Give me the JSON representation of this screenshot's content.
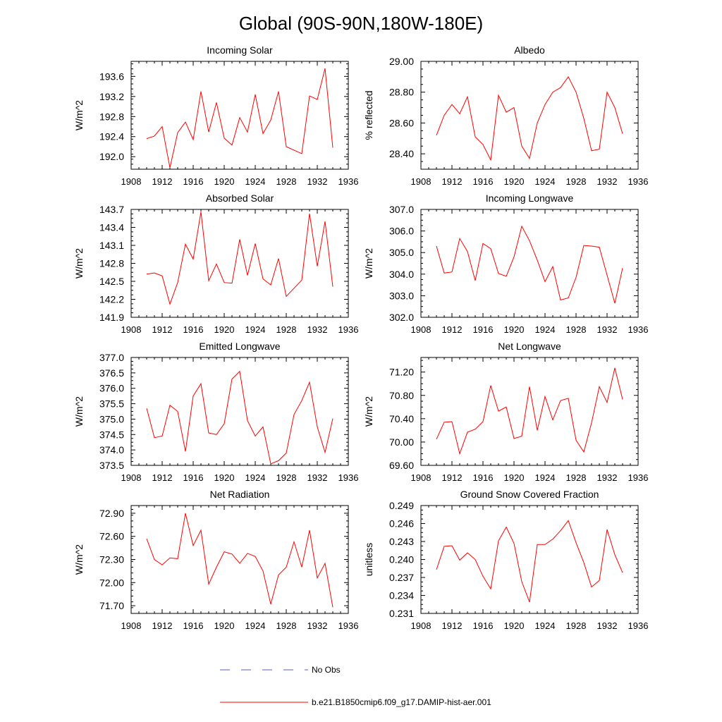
{
  "title": "Global (90S-90N,180W-180E)",
  "colors": {
    "model_line": "#ff0000",
    "obs_line": "#5a5ad6",
    "axis": "#000000"
  },
  "legend": {
    "obs_label": "No Obs",
    "model_label": "b.e21.B1850cmip6.f09_g17.DAMIP-hist-aer.001"
  },
  "chart_data": [
    {
      "type": "line",
      "title": "Incoming Solar",
      "xlabel": "",
      "ylabel": "W/m^2",
      "xlim": [
        1908,
        1936
      ],
      "ylim": [
        191.75,
        193.9
      ],
      "xticks": [
        1908,
        1912,
        1916,
        1920,
        1924,
        1928,
        1932,
        1936
      ],
      "yticks": [
        192.0,
        192.4,
        192.8,
        193.2,
        193.6
      ],
      "ytick_labels": [
        "192.0",
        "192.4",
        "192.8",
        "193.2",
        "193.6"
      ],
      "x": [
        1910,
        1911,
        1912,
        1913,
        1914,
        1915,
        1916,
        1917,
        1918,
        1919,
        1920,
        1921,
        1922,
        1923,
        1924,
        1925,
        1926,
        1927,
        1928,
        1930,
        1931,
        1932,
        1933,
        1934
      ],
      "series": [
        {
          "values": [
            192.36,
            192.41,
            192.6,
            191.78,
            192.48,
            192.69,
            192.34,
            193.3,
            192.49,
            193.08,
            192.37,
            192.23,
            192.78,
            192.49,
            193.24,
            192.46,
            192.73,
            193.3,
            192.2,
            192.06,
            193.21,
            193.14,
            193.76,
            192.18
          ]
        }
      ]
    },
    {
      "type": "line",
      "title": "Albedo",
      "xlabel": "",
      "ylabel": "% reflected",
      "xlim": [
        1908,
        1936
      ],
      "ylim": [
        28.3,
        29.0
      ],
      "xticks": [
        1908,
        1912,
        1916,
        1920,
        1924,
        1928,
        1932,
        1936
      ],
      "yticks": [
        28.4,
        28.6,
        28.8,
        29.0
      ],
      "ytick_labels": [
        "28.40",
        "28.60",
        "28.80",
        "29.00"
      ],
      "x": [
        1910,
        1911,
        1912,
        1913,
        1914,
        1915,
        1916,
        1917,
        1918,
        1919,
        1920,
        1921,
        1922,
        1923,
        1924,
        1925,
        1926,
        1927,
        1928,
        1929,
        1930,
        1931,
        1932,
        1933,
        1934
      ],
      "series": [
        {
          "values": [
            28.52,
            28.65,
            28.72,
            28.66,
            28.77,
            28.51,
            28.46,
            28.36,
            28.78,
            28.67,
            28.7,
            28.45,
            28.37,
            28.6,
            28.72,
            28.8,
            28.83,
            28.9,
            28.8,
            28.63,
            28.42,
            28.43,
            28.8,
            28.7,
            28.53
          ]
        }
      ]
    },
    {
      "type": "line",
      "title": "Absorbed Solar",
      "xlabel": "",
      "ylabel": "W/m^2",
      "xlim": [
        1908,
        1936
      ],
      "ylim": [
        141.9,
        143.7
      ],
      "xticks": [
        1908,
        1912,
        1916,
        1920,
        1924,
        1928,
        1932,
        1936
      ],
      "yticks": [
        141.9,
        142.2,
        142.5,
        142.8,
        143.1,
        143.4,
        143.7
      ],
      "ytick_labels": [
        "141.9",
        "142.2",
        "142.5",
        "142.8",
        "143.1",
        "143.4",
        "143.7"
      ],
      "x": [
        1910,
        1911,
        1912,
        1913,
        1914,
        1915,
        1916,
        1917,
        1918,
        1919,
        1920,
        1921,
        1922,
        1923,
        1924,
        1925,
        1926,
        1927,
        1928,
        1930,
        1931,
        1932,
        1933,
        1934
      ],
      "series": [
        {
          "values": [
            142.62,
            142.64,
            142.59,
            142.12,
            142.48,
            143.12,
            142.87,
            143.66,
            142.51,
            142.79,
            142.48,
            142.47,
            143.2,
            142.6,
            143.13,
            142.54,
            142.44,
            142.88,
            142.25,
            142.52,
            143.63,
            142.75,
            143.5,
            142.41
          ]
        }
      ]
    },
    {
      "type": "line",
      "title": "Incoming Longwave",
      "xlabel": "",
      "ylabel": "W/m^2",
      "xlim": [
        1908,
        1936
      ],
      "ylim": [
        302.0,
        307.0
      ],
      "xticks": [
        1908,
        1912,
        1916,
        1920,
        1924,
        1928,
        1932,
        1936
      ],
      "yticks": [
        302.0,
        303.0,
        304.0,
        305.0,
        306.0,
        307.0
      ],
      "ytick_labels": [
        "302.0",
        "303.0",
        "304.0",
        "305.0",
        "306.0",
        "307.0"
      ],
      "x": [
        1910,
        1911,
        1912,
        1913,
        1914,
        1915,
        1916,
        1917,
        1918,
        1919,
        1920,
        1921,
        1922,
        1923,
        1924,
        1925,
        1926,
        1927,
        1928,
        1929,
        1930,
        1931,
        1932,
        1933,
        1934
      ],
      "series": [
        {
          "values": [
            305.3,
            304.05,
            304.1,
            305.65,
            305.05,
            303.7,
            305.42,
            305.18,
            304.03,
            303.9,
            304.8,
            306.22,
            305.55,
            304.65,
            303.65,
            304.35,
            302.8,
            302.9,
            303.85,
            305.33,
            305.3,
            305.25,
            303.95,
            302.65,
            304.28
          ]
        }
      ]
    },
    {
      "type": "line",
      "title": "Emitted Longwave",
      "xlabel": "",
      "ylabel": "W/m^2",
      "xlim": [
        1908,
        1936
      ],
      "ylim": [
        373.5,
        377.0
      ],
      "xticks": [
        1908,
        1912,
        1916,
        1920,
        1924,
        1928,
        1932,
        1936
      ],
      "yticks": [
        373.5,
        374.0,
        374.5,
        375.0,
        375.5,
        376.0,
        376.5,
        377.0
      ],
      "ytick_labels": [
        "373.5",
        "374.0",
        "374.5",
        "375.0",
        "375.5",
        "376.0",
        "376.5",
        "377.0"
      ],
      "x": [
        1910,
        1911,
        1912,
        1913,
        1914,
        1915,
        1916,
        1917,
        1918,
        1919,
        1920,
        1921,
        1922,
        1923,
        1924,
        1925,
        1926,
        1927,
        1928,
        1929,
        1930,
        1931,
        1932,
        1933,
        1934
      ],
      "series": [
        {
          "values": [
            375.35,
            374.4,
            374.45,
            375.45,
            375.25,
            373.95,
            375.75,
            376.15,
            374.55,
            374.5,
            374.85,
            376.3,
            376.55,
            374.95,
            374.45,
            374.75,
            373.55,
            373.65,
            373.9,
            375.15,
            375.6,
            376.2,
            374.75,
            373.92,
            375.02
          ]
        }
      ]
    },
    {
      "type": "line",
      "title": "Net Longwave",
      "xlabel": "",
      "ylabel": "W/m^2",
      "xlim": [
        1908,
        1936
      ],
      "ylim": [
        69.6,
        71.45
      ],
      "xticks": [
        1908,
        1912,
        1916,
        1920,
        1924,
        1928,
        1932,
        1936
      ],
      "yticks": [
        69.6,
        70.0,
        70.4,
        70.8,
        71.2
      ],
      "ytick_labels": [
        "69.60",
        "70.00",
        "70.40",
        "70.80",
        "71.20"
      ],
      "x": [
        1910,
        1911,
        1912,
        1913,
        1914,
        1915,
        1916,
        1917,
        1918,
        1919,
        1920,
        1921,
        1922,
        1923,
        1924,
        1925,
        1926,
        1927,
        1928,
        1929,
        1930,
        1931,
        1932,
        1933,
        1934
      ],
      "series": [
        {
          "values": [
            70.05,
            70.34,
            70.35,
            69.8,
            70.17,
            70.22,
            70.35,
            70.97,
            70.53,
            70.6,
            70.06,
            70.1,
            70.95,
            70.2,
            70.78,
            70.38,
            70.71,
            70.75,
            70.03,
            69.83,
            70.33,
            70.95,
            70.68,
            71.27,
            70.73
          ]
        }
      ]
    },
    {
      "type": "line",
      "title": "Net Radiation",
      "xlabel": "",
      "ylabel": "W/m^2",
      "xlim": [
        1908,
        1936
      ],
      "ylim": [
        71.6,
        73.0
      ],
      "xticks": [
        1908,
        1912,
        1916,
        1920,
        1924,
        1928,
        1932,
        1936
      ],
      "yticks": [
        71.7,
        72.0,
        72.3,
        72.6,
        72.9
      ],
      "ytick_labels": [
        "71.70",
        "72.00",
        "72.30",
        "72.60",
        "72.90"
      ],
      "x": [
        1910,
        1911,
        1912,
        1913,
        1914,
        1915,
        1916,
        1917,
        1918,
        1919,
        1920,
        1921,
        1922,
        1923,
        1924,
        1925,
        1926,
        1927,
        1928,
        1929,
        1930,
        1931,
        1932,
        1933,
        1934
      ],
      "series": [
        {
          "values": [
            72.57,
            72.3,
            72.23,
            72.32,
            72.31,
            72.9,
            72.48,
            72.68,
            71.98,
            72.2,
            72.4,
            72.37,
            72.25,
            72.38,
            72.34,
            72.15,
            71.72,
            72.1,
            72.2,
            72.53,
            72.2,
            72.68,
            72.06,
            72.25,
            71.68
          ]
        }
      ]
    },
    {
      "type": "line",
      "title": "Ground Snow Covered Fraction",
      "xlabel": "",
      "ylabel": "unitless",
      "xlim": [
        1908,
        1936
      ],
      "ylim": [
        0.231,
        0.249
      ],
      "xticks": [
        1908,
        1912,
        1916,
        1920,
        1924,
        1928,
        1932,
        1936
      ],
      "yticks": [
        0.231,
        0.234,
        0.237,
        0.24,
        0.243,
        0.246,
        0.249
      ],
      "ytick_labels": [
        "0.231",
        "0.234",
        "0.237",
        "0.240",
        "0.243",
        "0.246",
        "0.249"
      ],
      "x": [
        1910,
        1911,
        1912,
        1913,
        1914,
        1915,
        1916,
        1917,
        1918,
        1919,
        1920,
        1921,
        1922,
        1923,
        1924,
        1925,
        1926,
        1927,
        1928,
        1929,
        1930,
        1931,
        1932,
        1933,
        1934
      ],
      "series": [
        {
          "values": [
            0.2383,
            0.2422,
            0.2423,
            0.2399,
            0.2411,
            0.24,
            0.2372,
            0.2351,
            0.2431,
            0.2454,
            0.2427,
            0.2363,
            0.2329,
            0.2425,
            0.2425,
            0.2434,
            0.2448,
            0.2465,
            0.2428,
            0.2395,
            0.2354,
            0.2365,
            0.245,
            0.2408,
            0.2378
          ]
        }
      ]
    }
  ]
}
